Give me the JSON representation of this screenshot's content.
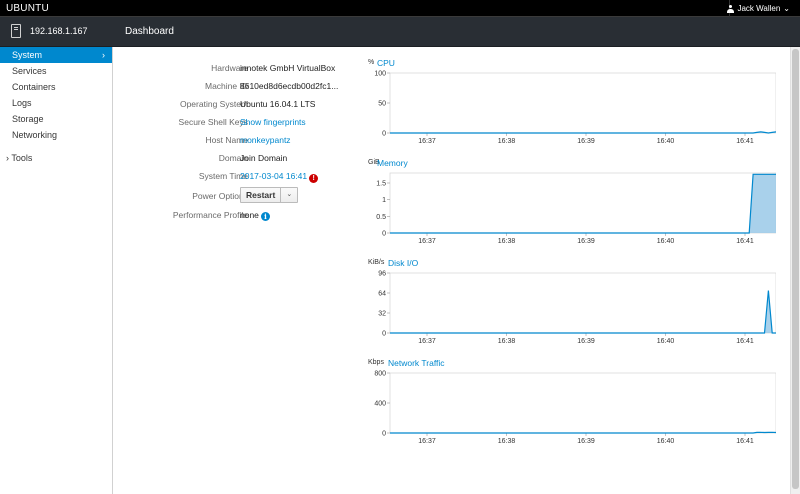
{
  "topbar": {
    "brand": "UBUNTU",
    "user_name": "Jack Wallen",
    "user_caret": "⌄"
  },
  "host": {
    "name": "192.168.1.167"
  },
  "page": {
    "title": "Dashboard"
  },
  "sidebar": {
    "items": [
      {
        "label": "System",
        "active": true,
        "chevron": "›"
      },
      {
        "label": "Services"
      },
      {
        "label": "Containers"
      },
      {
        "label": "Logs"
      },
      {
        "label": "Storage"
      },
      {
        "label": "Networking"
      }
    ],
    "tools": {
      "chevron": "›",
      "label": "Tools"
    }
  },
  "system_info": {
    "hardware": {
      "label": "Hardware",
      "value": "innotek GmbH VirtualBox"
    },
    "machine_id": {
      "label": "Machine ID",
      "value": "8610ed8d6ecdb00d2fc1..."
    },
    "os": {
      "label": "Operating System",
      "value": "Ubuntu 16.04.1 LTS"
    },
    "ssh_keys": {
      "label": "Secure Shell Keys",
      "value": "Show fingerprints"
    },
    "host_name": {
      "label": "Host Name",
      "value": "monkeypantz"
    },
    "domain": {
      "label": "Domain",
      "value": "Join Domain"
    },
    "system_time": {
      "label": "System Time",
      "value": "2017-03-04 16:41",
      "alert_icon": "!"
    },
    "power": {
      "label": "Power Options",
      "button": "Restart",
      "caret": "⌄"
    },
    "profile": {
      "label": "Performance Profile",
      "value": "none",
      "info_icon": "i"
    }
  },
  "colors": {
    "accent": "#0088ce",
    "dark_bar": "#292e34",
    "alert": "#cc0000",
    "fill": "#9ac9e8"
  },
  "chart_data": [
    {
      "type": "area",
      "title": "CPU",
      "unit": "%",
      "x_labels": [
        "16:37",
        "16:38",
        "16:39",
        "16:40",
        "16:41"
      ],
      "y_ticks": [
        0,
        50,
        100
      ],
      "ylim": [
        0,
        100
      ],
      "series": [
        {
          "values": [
            0,
            0,
            0,
            0,
            0,
            0,
            0,
            0,
            0,
            0,
            0,
            0,
            0,
            0,
            0,
            0,
            0,
            0,
            0,
            0,
            0,
            0,
            0,
            0,
            0,
            0,
            0,
            0,
            0,
            0,
            0,
            0,
            0,
            0,
            0,
            0,
            0,
            0,
            0,
            0,
            0,
            0,
            0,
            0,
            0,
            0,
            0,
            0,
            0,
            0,
            0,
            0,
            0,
            0,
            0,
            0,
            0,
            0,
            0,
            0,
            0,
            0,
            0,
            0,
            0,
            0,
            0,
            0,
            0,
            0,
            0,
            0,
            0,
            0,
            0,
            0,
            0,
            0,
            0,
            0,
            0,
            0,
            0,
            0,
            0,
            0,
            0,
            0,
            0,
            0,
            0,
            0,
            0,
            0,
            0,
            0,
            1,
            2,
            1,
            0,
            1,
            2
          ]
        }
      ]
    },
    {
      "type": "area",
      "title": "Memory",
      "unit": "GiB",
      "x_labels": [
        "16:37",
        "16:38",
        "16:39",
        "16:40",
        "16:41"
      ],
      "y_ticks": [
        0,
        0.5,
        1,
        1.5
      ],
      "ylim": [
        0,
        1.8
      ],
      "series": [
        {
          "values": [
            0,
            0,
            0,
            0,
            0,
            0,
            0,
            0,
            0,
            0,
            0,
            0,
            0,
            0,
            0,
            0,
            0,
            0,
            0,
            0,
            0,
            0,
            0,
            0,
            0,
            0,
            0,
            0,
            0,
            0,
            0,
            0,
            0,
            0,
            0,
            0,
            0,
            0,
            0,
            0,
            0,
            0,
            0,
            0,
            0,
            0,
            0,
            0,
            0,
            0,
            0,
            0,
            0,
            0,
            0,
            0,
            0,
            0,
            0,
            0,
            0,
            0,
            0,
            0,
            0,
            0,
            0,
            0,
            0,
            0,
            0,
            0,
            0,
            0,
            0,
            0,
            0,
            0,
            0,
            0,
            0,
            0,
            0,
            0,
            0,
            0,
            0,
            0,
            0,
            0,
            0,
            0,
            0,
            0,
            0,
            1.76,
            1.76,
            1.76,
            1.76,
            1.76,
            1.76,
            1.76
          ]
        }
      ]
    },
    {
      "type": "area",
      "title": "Disk I/O",
      "unit": "KiB/s",
      "x_labels": [
        "16:37",
        "16:38",
        "16:39",
        "16:40",
        "16:41"
      ],
      "y_ticks": [
        0,
        32,
        64,
        96
      ],
      "ylim": [
        0,
        96
      ],
      "series": [
        {
          "values": [
            0,
            0,
            0,
            0,
            0,
            0,
            0,
            0,
            0,
            0,
            0,
            0,
            0,
            0,
            0,
            0,
            0,
            0,
            0,
            0,
            0,
            0,
            0,
            0,
            0,
            0,
            0,
            0,
            0,
            0,
            0,
            0,
            0,
            0,
            0,
            0,
            0,
            0,
            0,
            0,
            0,
            0,
            0,
            0,
            0,
            0,
            0,
            0,
            0,
            0,
            0,
            0,
            0,
            0,
            0,
            0,
            0,
            0,
            0,
            0,
            0,
            0,
            0,
            0,
            0,
            0,
            0,
            0,
            0,
            0,
            0,
            0,
            0,
            0,
            0,
            0,
            0,
            0,
            0,
            0,
            0,
            0,
            0,
            0,
            0,
            0,
            0,
            0,
            0,
            0,
            0,
            0,
            0,
            0,
            0,
            0,
            0,
            0,
            0,
            68,
            0,
            0
          ]
        }
      ]
    },
    {
      "type": "area",
      "title": "Network Traffic",
      "unit": "Kbps",
      "x_labels": [
        "16:37",
        "16:38",
        "16:39",
        "16:40",
        "16:41"
      ],
      "y_ticks": [
        0,
        400,
        800
      ],
      "ylim": [
        0,
        800
      ],
      "series": [
        {
          "values": [
            0,
            0,
            0,
            0,
            0,
            0,
            0,
            0,
            0,
            0,
            0,
            0,
            0,
            0,
            0,
            0,
            0,
            0,
            0,
            0,
            0,
            0,
            0,
            0,
            0,
            0,
            0,
            0,
            0,
            0,
            0,
            0,
            0,
            0,
            0,
            0,
            0,
            0,
            0,
            0,
            0,
            0,
            0,
            0,
            0,
            0,
            0,
            0,
            0,
            0,
            0,
            0,
            0,
            0,
            0,
            0,
            0,
            0,
            0,
            0,
            0,
            0,
            0,
            0,
            0,
            0,
            0,
            0,
            0,
            0,
            0,
            0,
            0,
            0,
            0,
            0,
            0,
            0,
            0,
            0,
            0,
            0,
            0,
            0,
            0,
            0,
            0,
            0,
            0,
            0,
            0,
            0,
            0,
            0,
            0,
            0,
            8,
            10,
            6,
            8,
            10,
            6
          ]
        }
      ]
    }
  ]
}
